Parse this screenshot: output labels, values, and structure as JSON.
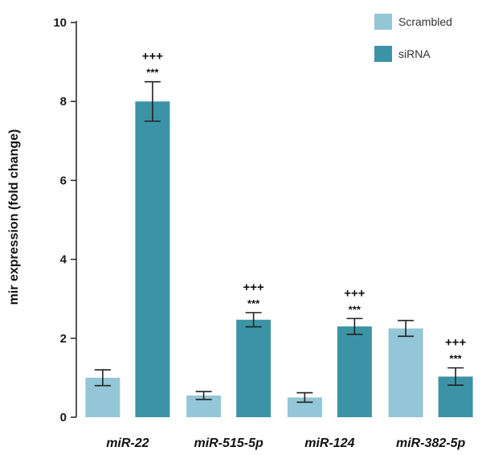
{
  "chart_data": {
    "type": "bar",
    "ylabel": "mir expression (fold change)",
    "ylim": [
      0,
      10
    ],
    "yticks": [
      0,
      2,
      4,
      6,
      8,
      10
    ],
    "categories": [
      "miR-22",
      "miR-515-5p",
      "miR-124",
      "miR-382-5p"
    ],
    "series": [
      {
        "name": "Scrambled",
        "color": "#93c6d6",
        "values": [
          1.0,
          0.55,
          0.5,
          2.25
        ],
        "errors": [
          0.2,
          0.1,
          0.12,
          0.2
        ],
        "sig_plus": [
          "",
          "",
          "",
          ""
        ],
        "sig_star": [
          "",
          "",
          "",
          ""
        ]
      },
      {
        "name": "siRNA",
        "color": "#3d93a6",
        "values": [
          8.0,
          2.47,
          2.3,
          1.03
        ],
        "errors": [
          0.5,
          0.18,
          0.2,
          0.22
        ],
        "sig_plus": [
          "+++",
          "+++",
          "+++",
          "+++"
        ],
        "sig_star": [
          "***",
          "***",
          "***",
          "***"
        ]
      }
    ],
    "legend_position": "top-right",
    "grid": false
  }
}
